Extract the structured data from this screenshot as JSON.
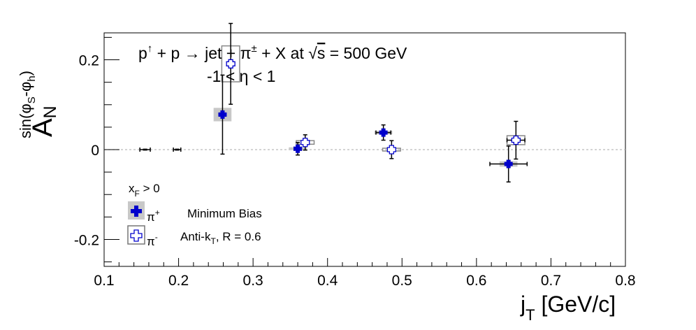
{
  "chart_data": {
    "type": "scatter",
    "title_line1": {
      "main": "p",
      "up": "↑",
      "rest1": " + p ",
      "arrow": "→",
      "rest2": " jet + π",
      "pm": "±",
      "rest3": " + X at ",
      "sqrt": "√",
      "s": "s",
      "rest4": " = 500 GeV"
    },
    "title_line2": "-1 < η < 1",
    "ylabel": {
      "main": "A",
      "sub": "N",
      "sup": "sin(φ",
      "sup_s": "S",
      "sup_mid": "-φ",
      "sup_h": "h",
      "sup_end": ")"
    },
    "xlabel": {
      "main": "j",
      "sub": "T",
      "unit": " [GeV/c]"
    },
    "xlim": [
      0.1,
      0.8
    ],
    "ylim": [
      -0.26,
      0.26
    ],
    "xticks": [
      "0.1",
      "0.2",
      "0.3",
      "0.4",
      "0.5",
      "0.6",
      "0.7",
      "0.8"
    ],
    "yticks": [
      "-0.2",
      "0",
      "0.2"
    ],
    "legend": {
      "condition_main": "x",
      "condition_sub": "F",
      "condition_rest": " > 0",
      "entries": [
        {
          "symbol": "π",
          "charge": "+",
          "text": "Minimum Bias"
        },
        {
          "symbol": "π",
          "charge": "-",
          "text_main": "Anti-k",
          "text_sub": "T",
          "text_rest": ", R = 0.6"
        }
      ]
    },
    "colors": {
      "pi_plus": "#0000cc",
      "pi_minus_fill": "#ffffff",
      "pi_minus_stroke": "#0000cc",
      "syst_box": "#888888",
      "zero_line": "#bbbbbb"
    },
    "series": [
      {
        "points": [
          {
            "x": 0.155,
            "y": 0.0,
            "xerr": 0.007,
            "yerr": 0.001,
            "sys": 0.0
          },
          {
            "x": 0.198,
            "y": 0.0,
            "xerr": 0.005,
            "yerr": 0.001,
            "sys": 0.0
          },
          {
            "x": 0.259,
            "y": 0.078,
            "xerr": 0.004,
            "yerr": 0.088,
            "sys": 0.015
          },
          {
            "x": 0.36,
            "y": 0.002,
            "xerr": 0.005,
            "yerr": 0.014,
            "sys": 0.003
          },
          {
            "x": 0.475,
            "y": 0.038,
            "xerr": 0.01,
            "yerr": 0.017,
            "sys": 0.004
          },
          {
            "x": 0.643,
            "y": -0.032,
            "xerr": 0.025,
            "yerr": 0.04,
            "sys": 0.006
          }
        ]
      },
      {
        "points": [
          {
            "x": 0.27,
            "y": 0.191,
            "xerr": 0.004,
            "yerr": 0.09,
            "sys": 0.04
          },
          {
            "x": 0.37,
            "y": 0.016,
            "xerr": 0.005,
            "yerr": 0.017,
            "sys": 0.004
          },
          {
            "x": 0.486,
            "y": 0.0,
            "xerr": 0.004,
            "yerr": 0.02,
            "sys": 0.003
          },
          {
            "x": 0.653,
            "y": 0.021,
            "xerr": 0.012,
            "yerr": 0.042,
            "sys": 0.01
          }
        ]
      }
    ]
  }
}
